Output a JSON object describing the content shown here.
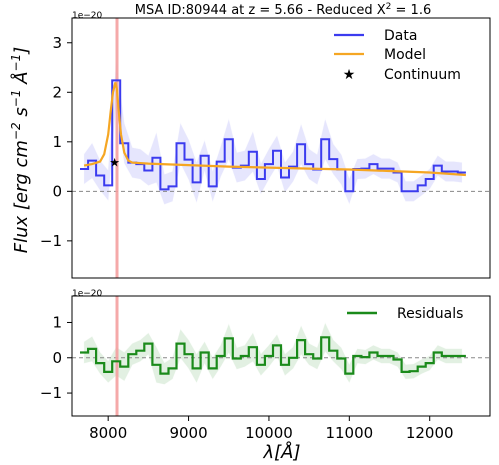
{
  "chart_data": [
    {
      "type": "line",
      "title": "MSA ID:80944 at z = 5.66 - Reduced X",
      "title_sup": "2",
      "title_tail": " = 1.6",
      "ylabel": "Flux [erg cm",
      "ylabel_parts": [
        "Flux [",
        "erg cm",
        "−2",
        " s",
        "−1",
        " Å",
        "−1",
        "]"
      ],
      "offset_text": "1e−20",
      "xlim": [
        7550,
        12750
      ],
      "ylim": [
        -1.75,
        3.5
      ],
      "yticks": [
        -1,
        0,
        1,
        2,
        3
      ],
      "ytick_labels": [
        "−1",
        "0",
        "1",
        "2",
        "3"
      ],
      "grid": false,
      "legend": "top-right",
      "hline": 0,
      "vline_x": 8110,
      "colors": {
        "data": "#3b3bef",
        "model": "#f5a623",
        "vline": "#f4a0a0",
        "hline": "#888888"
      },
      "series": [
        {
          "name": "Data",
          "style": "step",
          "x": [
            7700,
            7800,
            7900,
            8000,
            8100,
            8200,
            8300,
            8400,
            8500,
            8600,
            8700,
            8800,
            8900,
            9000,
            9100,
            9200,
            9300,
            9400,
            9500,
            9600,
            9700,
            9800,
            9900,
            10000,
            10100,
            10200,
            10300,
            10400,
            10500,
            10600,
            10700,
            10800,
            10900,
            11000,
            11100,
            11200,
            11300,
            11400,
            11500,
            11600,
            11700,
            11800,
            11900,
            12000,
            12100,
            12200,
            12300,
            12400
          ],
          "y": [
            0.45,
            0.62,
            0.32,
            0.12,
            2.24,
            0.97,
            0.58,
            0.55,
            0.42,
            0.68,
            0.04,
            0.1,
            0.97,
            0.64,
            0.18,
            0.72,
            0.1,
            0.6,
            1.05,
            0.48,
            0.52,
            0.8,
            0.25,
            0.55,
            0.82,
            0.28,
            0.5,
            0.95,
            0.55,
            0.44,
            1.05,
            0.65,
            0.44,
            0.0,
            0.45,
            0.46,
            0.55,
            0.46,
            0.46,
            0.38,
            0.0,
            0.0,
            0.12,
            0.25,
            0.52,
            0.4,
            0.4,
            0.38
          ],
          "err": [
            0.3,
            0.35,
            0.3,
            0.3,
            0.4,
            0.4,
            0.3,
            0.3,
            0.3,
            0.5,
            0.3,
            0.3,
            0.4,
            0.4,
            0.4,
            0.3,
            0.3,
            0.3,
            0.4,
            0.3,
            0.3,
            0.4,
            0.3,
            0.3,
            0.3,
            0.3,
            0.3,
            0.4,
            0.3,
            0.3,
            0.4,
            0.3,
            0.3,
            0.25,
            0.2,
            0.2,
            0.2,
            0.2,
            0.2,
            0.2,
            0.2,
            0.2,
            0.2,
            0.2,
            0.2,
            0.2,
            0.2,
            0.2
          ]
        },
        {
          "name": "Model",
          "style": "line",
          "x": [
            7700,
            7800,
            7900,
            7950,
            8000,
            8030,
            8060,
            8090,
            8110,
            8130,
            8160,
            8200,
            8250,
            8300,
            8500,
            9000,
            9500,
            10000,
            10500,
            11000,
            11500,
            12000,
            12450
          ],
          "y": [
            0.52,
            0.55,
            0.6,
            0.75,
            1.15,
            1.6,
            2.0,
            2.2,
            2.05,
            1.65,
            1.15,
            0.78,
            0.62,
            0.58,
            0.56,
            0.53,
            0.5,
            0.48,
            0.46,
            0.44,
            0.41,
            0.38,
            0.33
          ]
        },
        {
          "name": "Continuum",
          "style": "marker",
          "x": [
            8080
          ],
          "y": [
            0.58
          ]
        }
      ]
    },
    {
      "type": "line",
      "xlabel": "λ[Å]",
      "offset_text": "1e−20",
      "xlim": [
        7550,
        12750
      ],
      "ylim": [
        -1.65,
        1.75
      ],
      "xticks": [
        8000,
        9000,
        10000,
        11000,
        12000
      ],
      "xtick_labels": [
        "8000",
        "9000",
        "10000",
        "11000",
        "12000"
      ],
      "yticks": [
        -1,
        0,
        1
      ],
      "ytick_labels": [
        "−1",
        "0",
        "1"
      ],
      "grid": false,
      "legend": "top-right",
      "hline": 0,
      "vline_x": 8110,
      "colors": {
        "residuals": "#1a8a1a",
        "vline": "#f4a0a0",
        "hline": "#888888"
      },
      "series": [
        {
          "name": "Residuals",
          "style": "step",
          "x": [
            7700,
            7800,
            7900,
            8000,
            8100,
            8200,
            8300,
            8400,
            8500,
            8600,
            8700,
            8800,
            8900,
            9000,
            9100,
            9200,
            9300,
            9400,
            9500,
            9600,
            9700,
            9800,
            9900,
            10000,
            10100,
            10200,
            10300,
            10400,
            10500,
            10600,
            10700,
            10800,
            10900,
            11000,
            11100,
            11200,
            11300,
            11400,
            11500,
            11600,
            11700,
            11800,
            11900,
            12000,
            12100,
            12200,
            12300,
            12400
          ],
          "y": [
            0.15,
            0.25,
            -0.15,
            -0.4,
            -0.1,
            -0.25,
            0.1,
            0.2,
            0.4,
            -0.2,
            -0.45,
            -0.3,
            0.4,
            0.1,
            -0.3,
            0.15,
            -0.3,
            0.05,
            0.55,
            -0.02,
            0.05,
            0.3,
            -0.2,
            0.05,
            0.35,
            -0.2,
            0.0,
            0.5,
            0.1,
            -0.02,
            0.58,
            0.2,
            -0.02,
            -0.45,
            0.05,
            0.02,
            0.15,
            0.05,
            0.05,
            -0.05,
            -0.4,
            -0.38,
            -0.25,
            -0.15,
            0.15,
            0.05,
            0.05,
            0.05
          ],
          "err": [
            0.3,
            0.35,
            0.3,
            0.3,
            0.4,
            0.4,
            0.3,
            0.3,
            0.3,
            0.5,
            0.3,
            0.3,
            0.4,
            0.4,
            0.4,
            0.3,
            0.3,
            0.3,
            0.4,
            0.3,
            0.3,
            0.4,
            0.3,
            0.3,
            0.3,
            0.3,
            0.3,
            0.4,
            0.3,
            0.3,
            0.4,
            0.3,
            0.3,
            0.25,
            0.2,
            0.2,
            0.2,
            0.2,
            0.2,
            0.2,
            0.2,
            0.2,
            0.2,
            0.2,
            0.2,
            0.2,
            0.2,
            0.2
          ]
        }
      ]
    }
  ]
}
